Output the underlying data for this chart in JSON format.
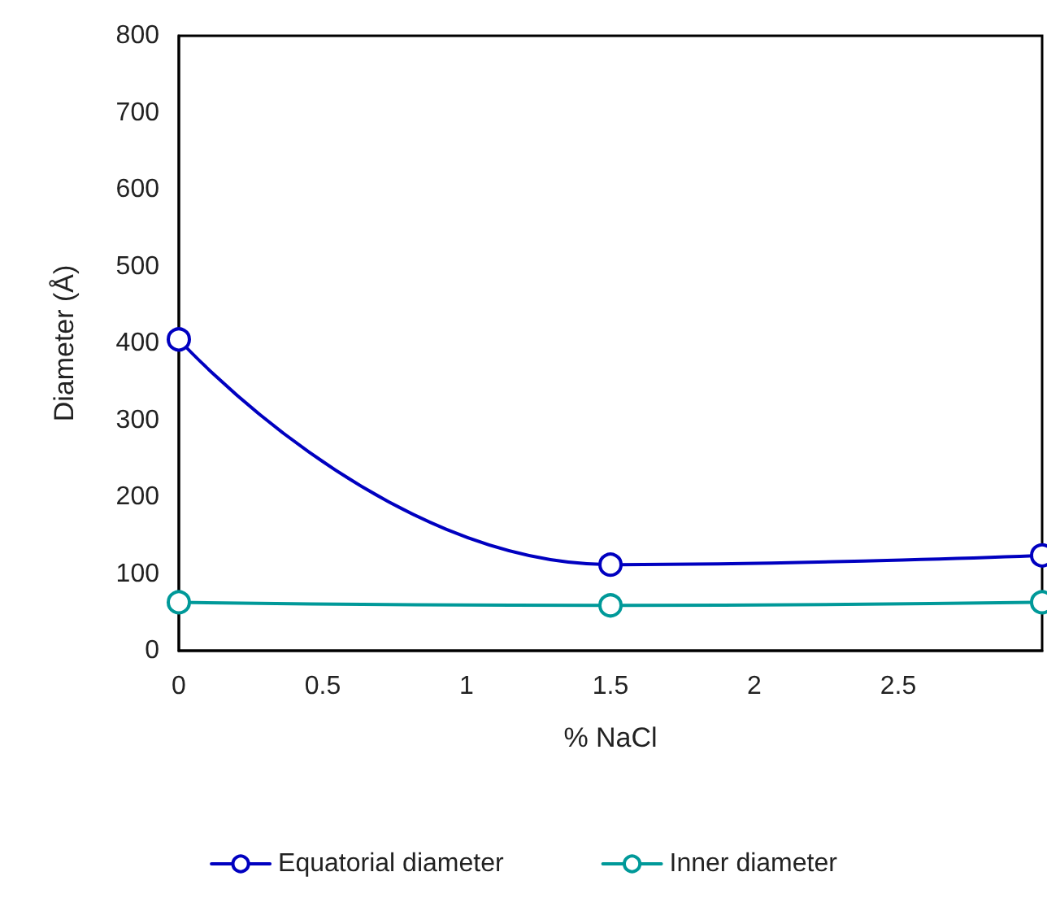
{
  "chart_data": {
    "type": "line",
    "xlabel": "% NaCl",
    "ylabel": "Diameter (Å)",
    "x": [
      0,
      1.5,
      3
    ],
    "series": [
      {
        "name": "Equatorial diameter",
        "color": "#0000c0",
        "values": [
          405,
          112,
          124
        ]
      },
      {
        "name": "Inner diameter",
        "color": "#009999",
        "values": [
          63,
          59,
          63
        ]
      }
    ],
    "xlim": [
      0,
      3
    ],
    "xticks": [
      0,
      0.5,
      1,
      1.5,
      2,
      2.5,
      {
        "value": 3,
        "label": null
      }
    ],
    "ylim": [
      0,
      800
    ],
    "yticks": [
      0,
      100,
      200,
      300,
      400,
      500,
      600,
      700,
      800
    ],
    "grid": false,
    "legend": "bottom",
    "marker": "circle",
    "line_style": "solid"
  }
}
